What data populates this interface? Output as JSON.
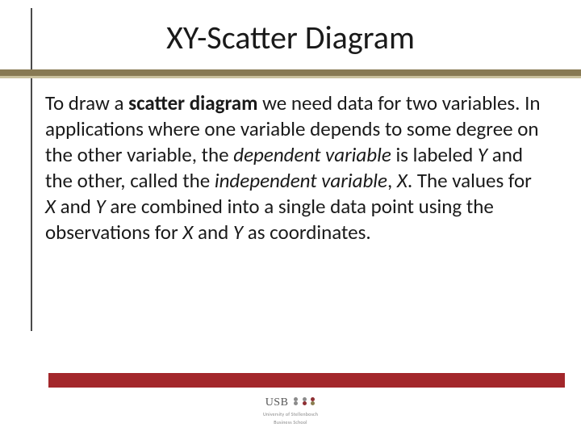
{
  "title": "XY-Scatter Diagram",
  "paragraph_html": "To draw a <b>scatter diagram</b> we need  data for two variables. In applications where one variable depends to some degree on the other variable, the <i>dependent variable</i> is labeled <i>Y</i> and the other, called the <i>independent variable</i>, <i>X</i>. The values for <i>X</i> and <i>Y</i> are combined into a single data point using the observations for <i>X</i> and <i>Y</i> as coordinates.",
  "colors": {
    "vline": "#4a4a4a",
    "hbar_dark": "#887a54",
    "hbar_light": "#cac19e",
    "footer_bar": "#a3272b",
    "text": "#1a1a1a",
    "background": "#ffffff"
  },
  "logo": {
    "brand": "USB",
    "sub1": "University of Stellenbosch",
    "sub2": "Business School",
    "dot_colors": {
      "gray": "#8a8a8a",
      "maroon": "#8e2f33",
      "olive": "#8a7d4f"
    }
  }
}
